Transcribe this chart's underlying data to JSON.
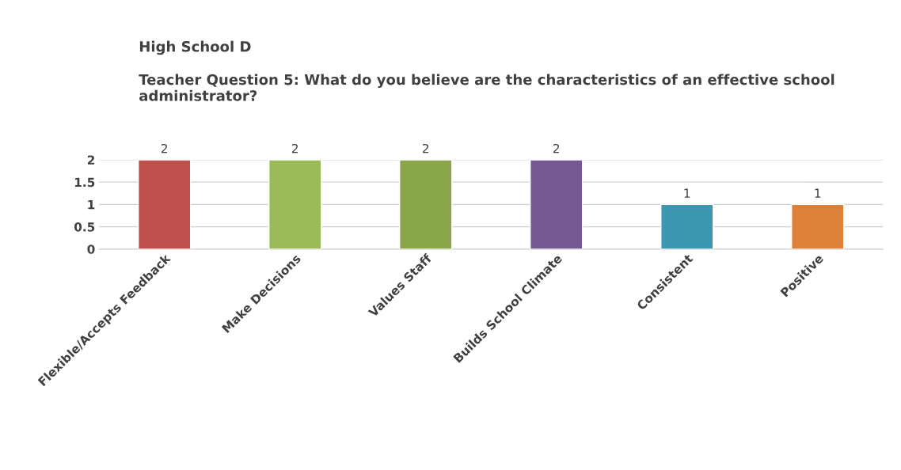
{
  "chart_data": {
    "type": "bar",
    "title": "High School D",
    "subtitle": "Teacher Question 5: What do you believe are the characteristics of an effective school administrator?",
    "categories": [
      "Flexible/Accepts Feedback",
      "Make Decisions",
      "Values Staff",
      "Builds School Climate",
      "Consistent",
      "Positive"
    ],
    "values": [
      2,
      2,
      2,
      2,
      1,
      1
    ],
    "colors": [
      "#c0504d",
      "#9bbb59",
      "#8aa64b",
      "#735990",
      "#3e97b0",
      "#dd803a"
    ],
    "ylim": [
      0,
      2
    ],
    "yticks": [
      0,
      0.5,
      1,
      1.5,
      2
    ],
    "grid": "y",
    "data_labels": true
  }
}
